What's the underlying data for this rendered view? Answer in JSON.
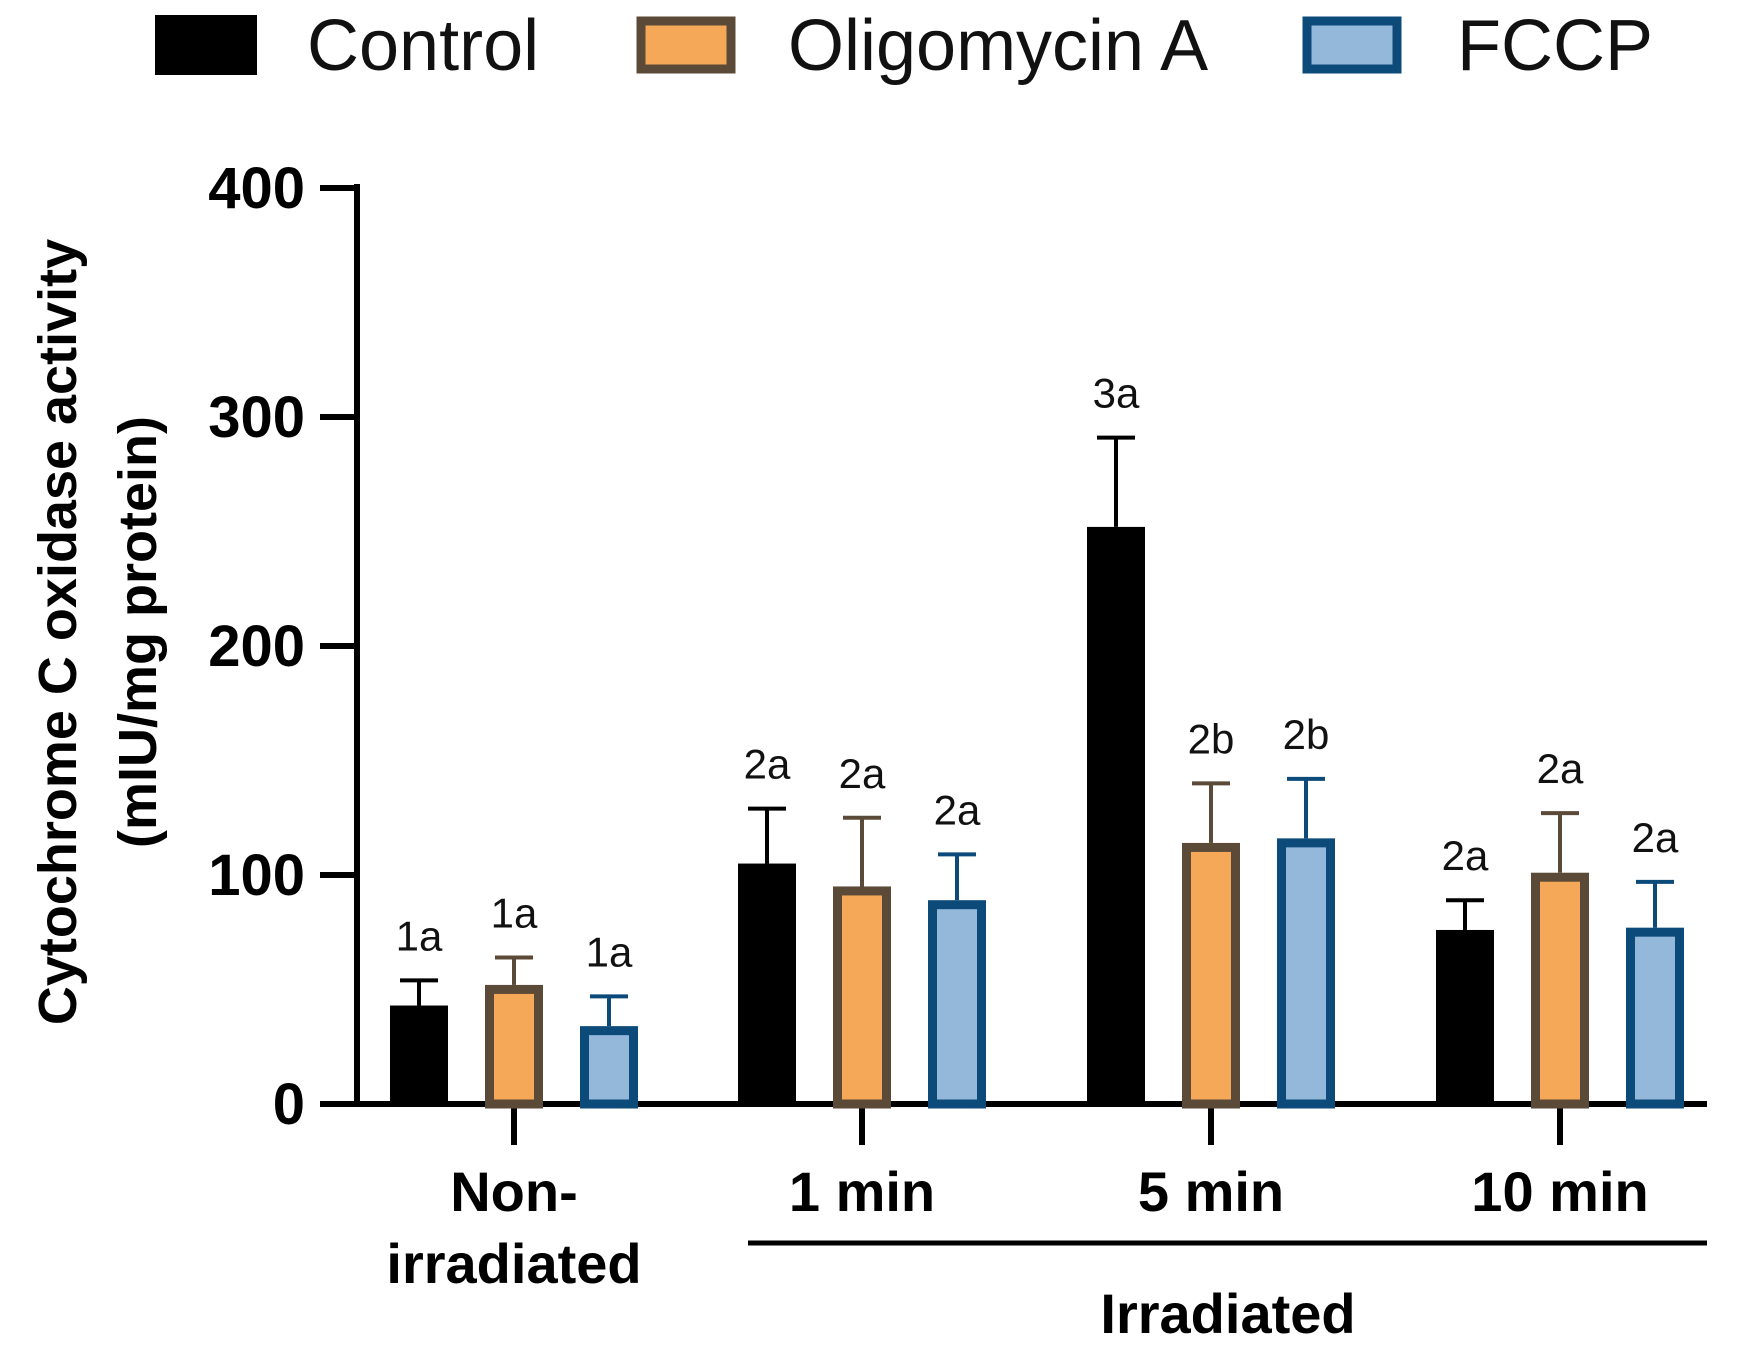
{
  "chart_data": {
    "type": "bar",
    "title": "",
    "ylabel_line1": "Cytochrome C oxidase activity",
    "ylabel_line2": "(mIU/mg protein)",
    "xlabel": "",
    "ylim": [
      0,
      400
    ],
    "yticks": [
      "0",
      "100",
      "200",
      "300",
      "400"
    ],
    "categories": [
      {
        "line1": "Non-",
        "line2": "irradiated"
      },
      {
        "line1": "1 min",
        "line2": ""
      },
      {
        "line1": "5 min",
        "line2": ""
      },
      {
        "line1": "10 min",
        "line2": ""
      }
    ],
    "group_label": "Irradiated",
    "series": [
      {
        "name": "Control",
        "fill": "#000000",
        "stroke": "#000000",
        "values": [
          43,
          105,
          252,
          76
        ],
        "errors": [
          11,
          24,
          39,
          13
        ],
        "annotations": [
          "1a",
          "2a",
          "3a",
          "2a"
        ]
      },
      {
        "name": "Oligomycin A",
        "fill": "#f5a858",
        "stroke": "#5c4a38",
        "values": [
          52,
          95,
          114,
          101
        ],
        "errors": [
          12,
          30,
          26,
          26
        ],
        "annotations": [
          "1a",
          "2a",
          "2b",
          "2a"
        ]
      },
      {
        "name": "FCCP",
        "fill": "#93b8da",
        "stroke": "#0c4a7a",
        "values": [
          34,
          89,
          116,
          77
        ],
        "errors": [
          13,
          20,
          26,
          20
        ],
        "annotations": [
          "1a",
          "2a",
          "2b",
          "2a"
        ]
      }
    ],
    "legend_position": "top"
  }
}
